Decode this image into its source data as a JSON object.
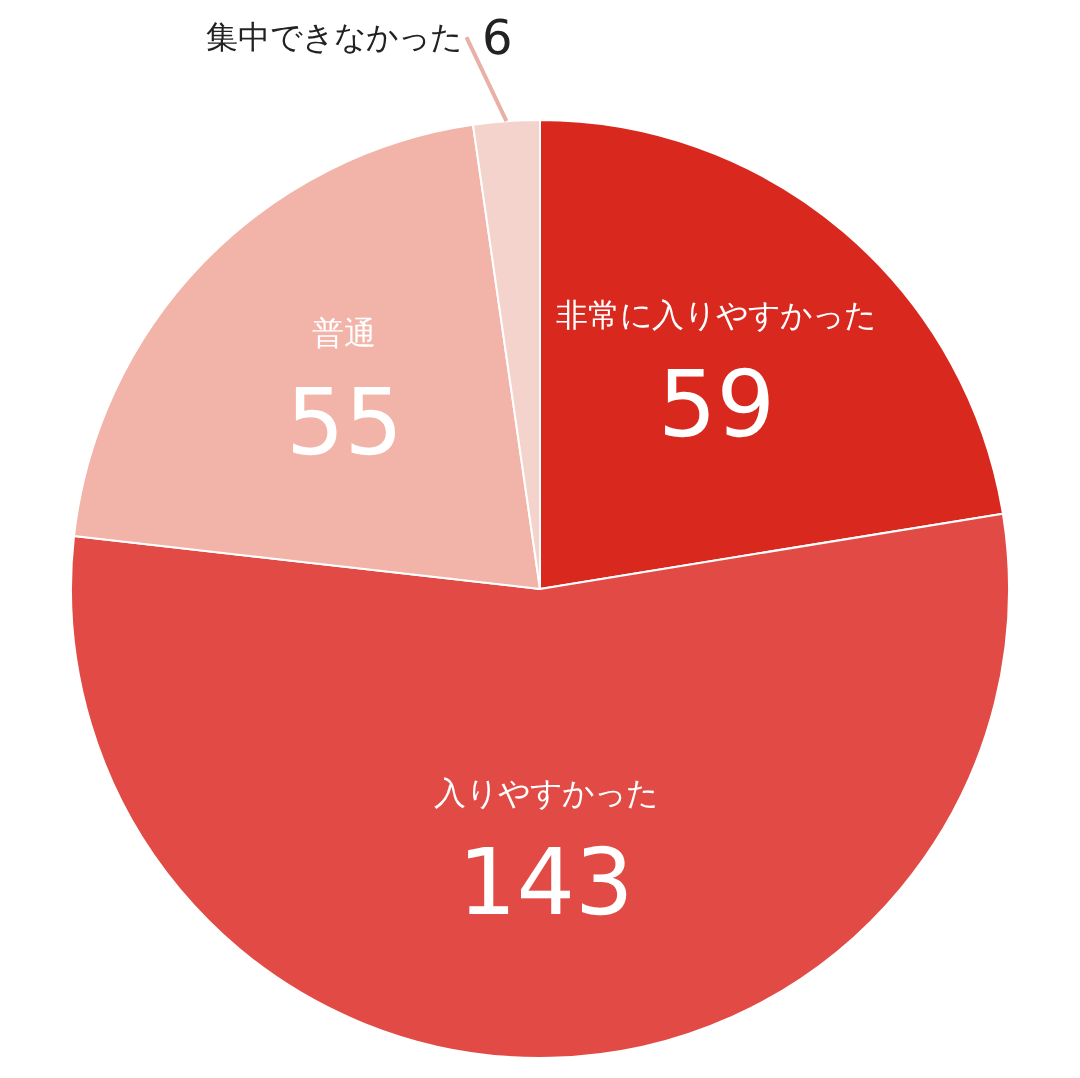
{
  "chart_data": {
    "type": "pie",
    "categories": [
      "非常に入りやすかった",
      "入りやすかった",
      "普通",
      "集中できなかった"
    ],
    "values": [
      59,
      143,
      55,
      6
    ],
    "colors": [
      "#d9281e",
      "#e24b45",
      "#f2b3a8",
      "#f3d3cc"
    ],
    "data_labels": true,
    "legend": false
  }
}
